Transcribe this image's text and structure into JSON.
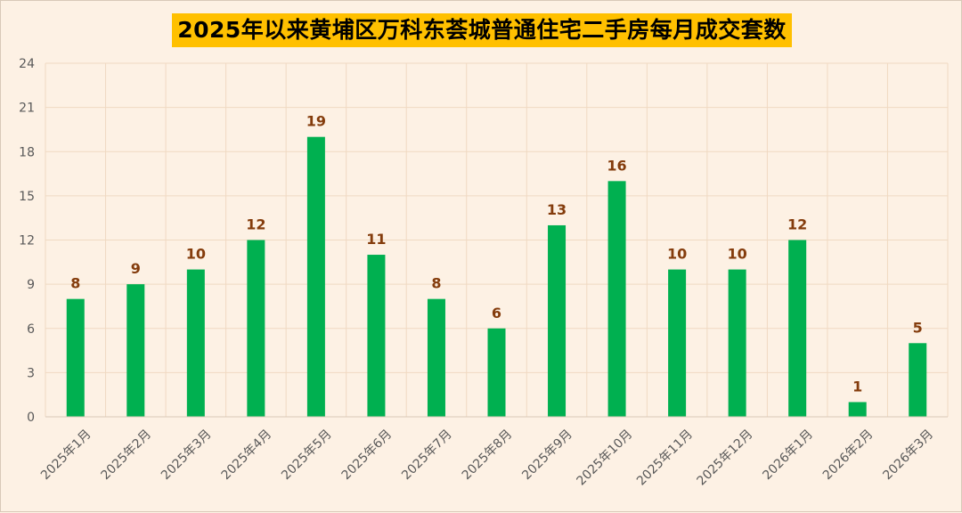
{
  "chart_data": {
    "type": "bar",
    "title": "2025年以来黄埔区万科东荟城普通住宅二手房每月成交套数",
    "categories": [
      "2025年1月",
      "2025年2月",
      "2025年3月",
      "2025年4月",
      "2025年5月",
      "2025年6月",
      "2025年7月",
      "2025年8月",
      "2025年9月",
      "2025年10月",
      "2025年11月",
      "2025年12月",
      "2026年1月",
      "2026年2月",
      "2026年3月"
    ],
    "values": [
      8,
      9,
      10,
      12,
      19,
      11,
      8,
      6,
      13,
      16,
      10,
      10,
      12,
      1,
      5
    ],
    "ylim": [
      0,
      24
    ],
    "yticks": [
      0,
      3,
      6,
      9,
      12,
      15,
      18,
      21,
      24
    ],
    "grid": true,
    "legend": "none",
    "bar_color": "#00b050",
    "label_color": "#843c0c",
    "title_bg": "#ffc000"
  }
}
